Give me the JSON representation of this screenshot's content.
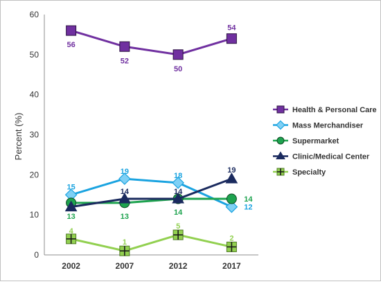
{
  "chart_data": {
    "type": "line",
    "ylabel": "Percent (%)",
    "xlabel": "",
    "ylim": [
      0,
      60
    ],
    "yticks": [
      0,
      10,
      20,
      30,
      40,
      50,
      60
    ],
    "grid": false,
    "legend_position": "right",
    "categories": [
      "2002",
      "2007",
      "2012",
      "2017"
    ],
    "series": [
      {
        "name": "Health & Personal Care",
        "values": [
          56,
          52,
          50,
          54
        ],
        "color": "#7030a0",
        "marker": "square",
        "labels": [
          "56",
          "52",
          "50",
          "54"
        ]
      },
      {
        "name": "Mass Merchandiser",
        "values": [
          15,
          19,
          18,
          12
        ],
        "color": "#1aa3e0",
        "marker_fill": "#7fd0f5",
        "marker": "diamond",
        "labels": [
          "15",
          "19",
          "18",
          "12"
        ]
      },
      {
        "name": "Supermarket",
        "values": [
          13,
          13,
          14,
          14
        ],
        "color": "#1ea34f",
        "marker": "circle",
        "labels": [
          "13",
          "13",
          "14",
          "14"
        ]
      },
      {
        "name": "Clinic/Medical Center",
        "values": [
          12,
          14,
          14,
          19
        ],
        "color": "#1a2a5e",
        "marker": "triangle",
        "labels": [
          "",
          "14",
          "14",
          "19"
        ]
      },
      {
        "name": "Specialty",
        "values": [
          4,
          1,
          5,
          2
        ],
        "color": "#92d050",
        "marker": "plus-square",
        "labels": [
          "4",
          "1",
          "5",
          "2"
        ]
      }
    ]
  }
}
